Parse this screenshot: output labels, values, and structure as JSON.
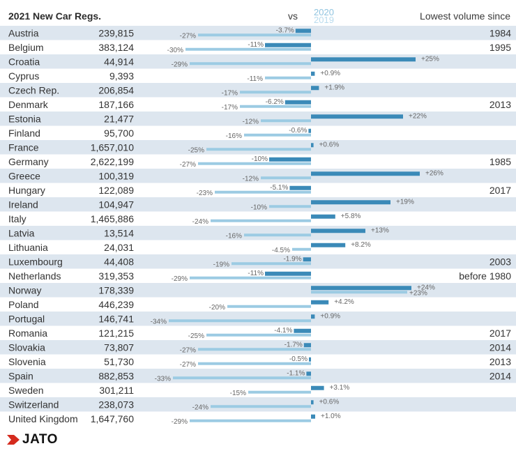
{
  "header": {
    "title": "2021 New Car Regs.",
    "vs": "vs",
    "legend_2020": "2020",
    "legend_2019": "2019",
    "since_header": "Lowest volume since"
  },
  "brand": {
    "name": "JATO"
  },
  "colors": {
    "row_shade": "#dde6ef",
    "bar_2020": "#3b8ab8",
    "bar_2019": "#9ccbe3",
    "logo_red": "#d52b1e"
  },
  "chart_data": {
    "type": "bar",
    "orientation": "horizontal",
    "center_zero": true,
    "unit": "%",
    "xlim": [
      -34,
      26
    ],
    "columns": [
      "country",
      "registrations_2021",
      "vs_2020",
      "vs_2019",
      "lowest_volume_since"
    ],
    "series": [
      {
        "name": "2020",
        "key": "vs_2020"
      },
      {
        "name": "2019",
        "key": "vs_2019"
      }
    ],
    "rows": [
      {
        "country": "Austria",
        "registrations": "239,815",
        "vs_2020": -3.7,
        "label_2020": "-3.7%",
        "vs_2019": -27,
        "label_2019": "-27%",
        "since": "1984"
      },
      {
        "country": "Belgium",
        "registrations": "383,124",
        "vs_2020": -11,
        "label_2020": "-11%",
        "vs_2019": -30,
        "label_2019": "-30%",
        "since": "1995"
      },
      {
        "country": "Croatia",
        "registrations": "44,914",
        "vs_2020": 25,
        "label_2020": "+25%",
        "vs_2019": -29,
        "label_2019": "-29%",
        "since": ""
      },
      {
        "country": "Cyprus",
        "registrations": "9,393",
        "vs_2020": 0.9,
        "label_2020": "+0.9%",
        "vs_2019": -11,
        "label_2019": "-11%",
        "since": ""
      },
      {
        "country": "Czech Rep.",
        "registrations": "206,854",
        "vs_2020": 1.9,
        "label_2020": "+1.9%",
        "vs_2019": -17,
        "label_2019": "-17%",
        "since": ""
      },
      {
        "country": "Denmark",
        "registrations": "187,166",
        "vs_2020": -6.2,
        "label_2020": "-6.2%",
        "vs_2019": -17,
        "label_2019": "-17%",
        "since": "2013"
      },
      {
        "country": "Estonia",
        "registrations": "21,477",
        "vs_2020": 22,
        "label_2020": "+22%",
        "vs_2019": -12,
        "label_2019": "-12%",
        "since": ""
      },
      {
        "country": "Finland",
        "registrations": "95,700",
        "vs_2020": -0.6,
        "label_2020": "-0.6%",
        "vs_2019": -16,
        "label_2019": "-16%",
        "since": ""
      },
      {
        "country": "France",
        "registrations": "1,657,010",
        "vs_2020": 0.6,
        "label_2020": "+0.6%",
        "vs_2019": -25,
        "label_2019": "-25%",
        "since": ""
      },
      {
        "country": "Germany",
        "registrations": "2,622,199",
        "vs_2020": -10,
        "label_2020": "-10%",
        "vs_2019": -27,
        "label_2019": "-27%",
        "since": "1985"
      },
      {
        "country": "Greece",
        "registrations": "100,319",
        "vs_2020": 26,
        "label_2020": "+26%",
        "vs_2019": -12,
        "label_2019": "-12%",
        "since": ""
      },
      {
        "country": "Hungary",
        "registrations": "122,089",
        "vs_2020": -5.1,
        "label_2020": "-5.1%",
        "vs_2019": -23,
        "label_2019": "-23%",
        "since": "2017"
      },
      {
        "country": "Ireland",
        "registrations": "104,947",
        "vs_2020": 19,
        "label_2020": "+19%",
        "vs_2019": -10,
        "label_2019": "-10%",
        "since": ""
      },
      {
        "country": "Italy",
        "registrations": "1,465,886",
        "vs_2020": 5.8,
        "label_2020": "+5.8%",
        "vs_2019": -24,
        "label_2019": "-24%",
        "since": ""
      },
      {
        "country": "Latvia",
        "registrations": "13,514",
        "vs_2020": 13,
        "label_2020": "+13%",
        "vs_2019": -16,
        "label_2019": "-16%",
        "since": ""
      },
      {
        "country": "Lithuania",
        "registrations": "24,031",
        "vs_2020": 8.2,
        "label_2020": "+8.2%",
        "vs_2019": -4.5,
        "label_2019": "-4.5%",
        "since": ""
      },
      {
        "country": "Luxembourg",
        "registrations": "44,408",
        "vs_2020": -1.9,
        "label_2020": "-1.9%",
        "vs_2019": -19,
        "label_2019": "-19%",
        "since": "2003"
      },
      {
        "country": "Netherlands",
        "registrations": "319,353",
        "vs_2020": -11,
        "label_2020": "-11%",
        "vs_2019": -29,
        "label_2019": "-29%",
        "since": "before 1980"
      },
      {
        "country": "Norway",
        "registrations": "178,339",
        "vs_2020": 24,
        "label_2020": "+24%",
        "vs_2019": 23,
        "label_2019": "+23%",
        "since": ""
      },
      {
        "country": "Poland",
        "registrations": "446,239",
        "vs_2020": 4.2,
        "label_2020": "+4.2%",
        "vs_2019": -20,
        "label_2019": "-20%",
        "since": ""
      },
      {
        "country": "Portugal",
        "registrations": "146,741",
        "vs_2020": 0.9,
        "label_2020": "+0.9%",
        "vs_2019": -34,
        "label_2019": "-34%",
        "since": ""
      },
      {
        "country": "Romania",
        "registrations": "121,215",
        "vs_2020": -4.1,
        "label_2020": "-4.1%",
        "vs_2019": -25,
        "label_2019": "-25%",
        "since": "2017"
      },
      {
        "country": "Slovakia",
        "registrations": "73,807",
        "vs_2020": -1.7,
        "label_2020": "-1.7%",
        "vs_2019": -27,
        "label_2019": "-27%",
        "since": "2014"
      },
      {
        "country": "Slovenia",
        "registrations": "51,730",
        "vs_2020": -0.5,
        "label_2020": "-0.5%",
        "vs_2019": -27,
        "label_2019": "-27%",
        "since": "2013"
      },
      {
        "country": "Spain",
        "registrations": "882,853",
        "vs_2020": -1.1,
        "label_2020": "-1.1%",
        "vs_2019": -33,
        "label_2019": "-33%",
        "since": "2014"
      },
      {
        "country": "Sweden",
        "registrations": "301,211",
        "vs_2020": 3.1,
        "label_2020": "+3.1%",
        "vs_2019": -15,
        "label_2019": "-15%",
        "since": ""
      },
      {
        "country": "Switzerland",
        "registrations": "238,073",
        "vs_2020": 0.6,
        "label_2020": "+0.6%",
        "vs_2019": -24,
        "label_2019": "-24%",
        "since": ""
      },
      {
        "country": "United Kingdom",
        "registrations": "1,647,760",
        "vs_2020": 1.0,
        "label_2020": "+1.0%",
        "vs_2019": -29,
        "label_2019": "-29%",
        "since": ""
      }
    ]
  }
}
